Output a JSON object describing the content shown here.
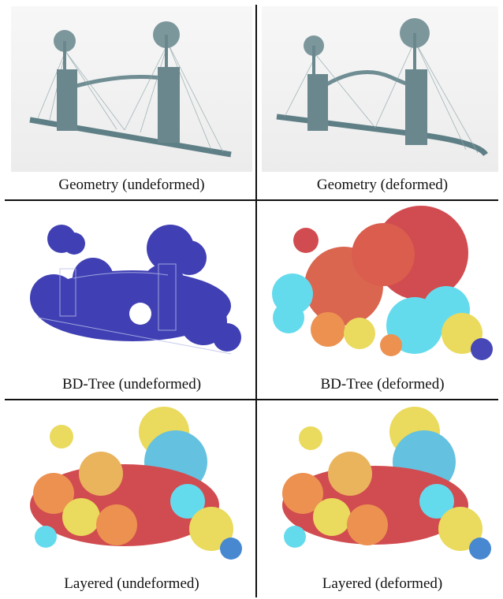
{
  "figure": {
    "panels": [
      {
        "id": "geometry-undeformed",
        "caption": "Geometry (undeformed)"
      },
      {
        "id": "geometry-deformed",
        "caption": "Geometry (deformed)"
      },
      {
        "id": "bdtree-undeformed",
        "caption": "BD-Tree (undeformed)"
      },
      {
        "id": "bdtree-deformed",
        "caption": "BD-Tree (deformed)"
      },
      {
        "id": "layered-undeformed",
        "caption": "Layered (undeformed)"
      },
      {
        "id": "layered-deformed",
        "caption": "Layered (deformed)"
      }
    ],
    "colors": {
      "geometry": "#5f7f86",
      "bdtree_blue": "#1f1fa8",
      "heat_red": "#c8262a",
      "heat_orange": "#e8792a",
      "heat_yellow": "#e6d23a",
      "heat_cyan": "#43d4ea"
    }
  }
}
